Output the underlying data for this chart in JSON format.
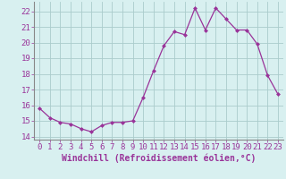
{
  "x": [
    0,
    1,
    2,
    3,
    4,
    5,
    6,
    7,
    8,
    9,
    10,
    11,
    12,
    13,
    14,
    15,
    16,
    17,
    18,
    19,
    20,
    21,
    22,
    23
  ],
  "y": [
    15.8,
    15.2,
    14.9,
    14.8,
    14.5,
    14.3,
    14.7,
    14.9,
    14.9,
    15.0,
    16.5,
    18.2,
    19.8,
    20.7,
    20.5,
    22.2,
    20.8,
    22.2,
    21.5,
    20.8,
    20.8,
    19.9,
    17.9,
    16.7
  ],
  "line_color": "#993399",
  "marker": "D",
  "marker_size": 2.5,
  "bg_color": "#d8f0f0",
  "grid_color": "#aacccc",
  "xlabel": "Windchill (Refroidissement éolien,°C)",
  "xlabel_fontsize": 7,
  "tick_fontsize": 6.5,
  "ylim": [
    13.8,
    22.6
  ],
  "yticks": [
    14,
    15,
    16,
    17,
    18,
    19,
    20,
    21,
    22
  ],
  "xticks": [
    0,
    1,
    2,
    3,
    4,
    5,
    6,
    7,
    8,
    9,
    10,
    11,
    12,
    13,
    14,
    15,
    16,
    17,
    18,
    19,
    20,
    21,
    22,
    23
  ],
  "spine_color": "#888888"
}
